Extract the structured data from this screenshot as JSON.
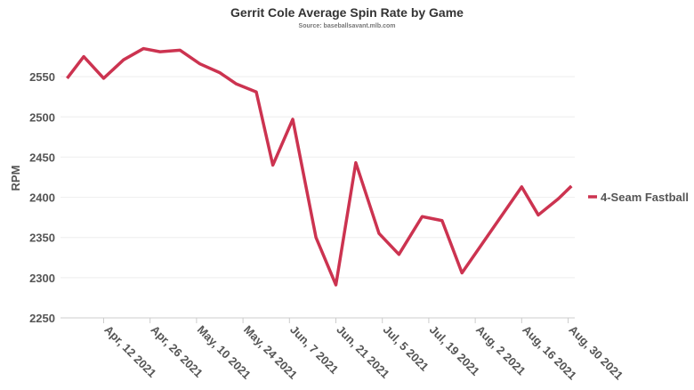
{
  "chart_data": {
    "type": "line",
    "title": "Gerrit Cole Average Spin Rate by Game",
    "subtitle": "Source: baseballsavant.mlb.com",
    "y_label": "RPM",
    "x": [
      "2021-04-01",
      "2021-04-06",
      "2021-04-12",
      "2021-04-18",
      "2021-04-24",
      "2021-04-29",
      "2021-05-05",
      "2021-05-11",
      "2021-05-17",
      "2021-05-22",
      "2021-05-28",
      "2021-06-02",
      "2021-06-08",
      "2021-06-15",
      "2021-06-21",
      "2021-06-27",
      "2021-07-04",
      "2021-07-10",
      "2021-07-17",
      "2021-07-23",
      "2021-07-29",
      "2021-08-16",
      "2021-08-21",
      "2021-08-27",
      "2021-08-31"
    ],
    "series": [
      {
        "name": "4-Seam Fastball",
        "color": "#cc3350",
        "values": [
          2548,
          2575,
          2548,
          2571,
          2585,
          2581,
          2583,
          2566,
          2555,
          2541,
          2531,
          2440,
          2497,
          2350,
          2291,
          2443,
          2355,
          2329,
          2376,
          2371,
          2306,
          2413,
          2378,
          2398,
          2414
        ]
      }
    ],
    "xlim": [
      "2021-03-30",
      "2021-09-01"
    ],
    "xticks": [
      {
        "value": "2021-04-12",
        "label": "Apr, 12 2021"
      },
      {
        "value": "2021-04-26",
        "label": "Apr, 26 2021"
      },
      {
        "value": "2021-05-10",
        "label": "May, 10 2021"
      },
      {
        "value": "2021-05-24",
        "label": "May, 24 2021"
      },
      {
        "value": "2021-06-07",
        "label": "Jun, 7 2021"
      },
      {
        "value": "2021-06-21",
        "label": "Jun, 21 2021"
      },
      {
        "value": "2021-07-05",
        "label": "Jul, 5 2021"
      },
      {
        "value": "2021-07-19",
        "label": "Jul, 19 2021"
      },
      {
        "value": "2021-08-02",
        "label": "Aug, 2 2021"
      },
      {
        "value": "2021-08-16",
        "label": "Aug, 16 2021"
      },
      {
        "value": "2021-08-30",
        "label": "Aug, 30 2021"
      }
    ],
    "ylim": [
      2250,
      2600
    ],
    "yticks": [
      2250,
      2300,
      2350,
      2400,
      2450,
      2500,
      2550
    ],
    "grid": true,
    "legend": "right"
  }
}
